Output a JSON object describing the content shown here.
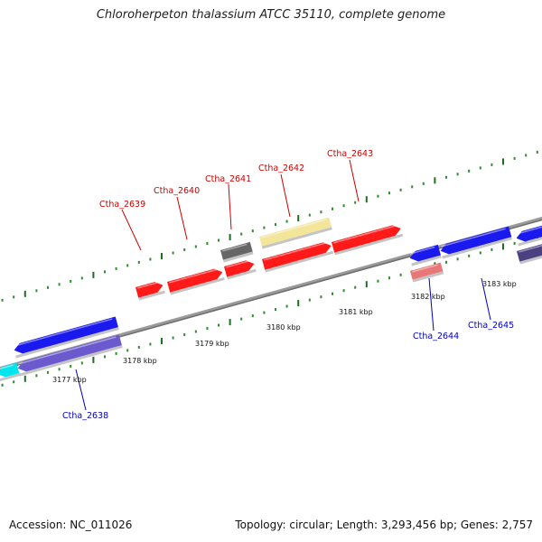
{
  "title": "Chloroherpeton thalassium ATCC 35110, complete genome",
  "footer": {
    "accession": "Accession: NC_011026",
    "summary": "Topology: circular; Length: 3,293,456 bp; Genes: 2,757"
  },
  "colors": {
    "backbone": "#8a8a8a",
    "dots": "#2e8b2e",
    "major_tick": "#1e6e1e",
    "forward_label": "#cc0000",
    "reverse_label": "#0000bb",
    "red_gene": "#ff1a1a",
    "gray_gene": "#666666",
    "yellow_gene": "#f3e59a",
    "blue_gene": "#1a1aee",
    "purple_gene": "#6a5acd",
    "cyan_gene": "#00e5ee",
    "pink_gene": "#e87878",
    "darkslate_gene": "#4b4080"
  },
  "tick_labels": [
    {
      "text": "3177 kbp"
    },
    {
      "text": "3178 kbp"
    },
    {
      "text": "3179 kbp"
    },
    {
      "text": "3180 kbp"
    },
    {
      "text": "3181 kbp"
    },
    {
      "text": "3182 kbp"
    },
    {
      "text": "3183 kbp"
    }
  ],
  "forward_labels": [
    "Ctha_2639",
    "Ctha_2640",
    "Ctha_2641",
    "Ctha_2642",
    "Ctha_2643"
  ],
  "reverse_labels": [
    "Ctha_2638",
    "Ctha_2644",
    "Ctha_2645"
  ],
  "genes": [
    {
      "strand": "+",
      "color": "red_gene"
    },
    {
      "strand": "+",
      "color": "red_gene"
    },
    {
      "strand": "+",
      "color": "red_gene"
    },
    {
      "strand": "+",
      "color": "red_gene"
    },
    {
      "strand": "+",
      "color": "red_gene"
    },
    {
      "strand": "none",
      "color": "gray_gene"
    },
    {
      "strand": "none",
      "color": "yellow_gene"
    },
    {
      "strand": "-",
      "color": "blue_gene"
    },
    {
      "strand": "-",
      "color": "blue_gene"
    },
    {
      "strand": "-",
      "color": "blue_gene"
    },
    {
      "strand": "-",
      "color": "blue_gene"
    },
    {
      "strand": "none",
      "color": "pink_gene"
    },
    {
      "strand": "-",
      "color": "purple_gene"
    },
    {
      "strand": "-",
      "color": "cyan_gene"
    },
    {
      "strand": "none",
      "color": "darkslate_gene"
    }
  ]
}
